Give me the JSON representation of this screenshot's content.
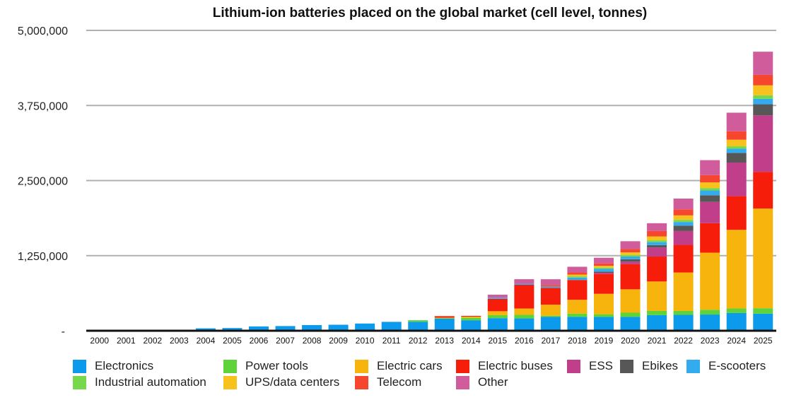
{
  "chart_data": {
    "type": "bar",
    "stacked": true,
    "title": "Lithium-ion batteries placed on the global market (cell level, tonnes)",
    "xlabel": "",
    "ylabel": "",
    "ylim": [
      0,
      5000000
    ],
    "yticks": [
      0,
      1250000,
      2500000,
      3750000,
      5000000
    ],
    "ytick_labels": [
      "-",
      "1,250,000",
      "2,500,000",
      "3,750,000",
      "5,000,000"
    ],
    "grid": true,
    "legend_position": "bottom",
    "categories": [
      "2000",
      "2001",
      "2002",
      "2003",
      "2004",
      "2005",
      "2006",
      "2007",
      "2008",
      "2009",
      "2010",
      "2011",
      "2012",
      "2013",
      "2014",
      "2015",
      "2016",
      "2017",
      "2018",
      "2019",
      "2020",
      "2021",
      "2022",
      "2023",
      "2024",
      "2025"
    ],
    "series": [
      {
        "name": "Electronics",
        "color": "#0C9BEC",
        "values": [
          10000,
          12000,
          14000,
          16000,
          40000,
          45000,
          72000,
          78000,
          95000,
          100000,
          120000,
          148000,
          150000,
          200000,
          175000,
          210000,
          205000,
          230000,
          230000,
          230000,
          230000,
          260000,
          265000,
          270000,
          295000,
          285000
        ]
      },
      {
        "name": "Power tools",
        "color": "#5ED43A",
        "values": [
          0,
          0,
          0,
          0,
          0,
          0,
          0,
          0,
          0,
          0,
          0,
          0,
          25000,
          10000,
          40000,
          50000,
          60000,
          20000,
          55000,
          45000,
          70000,
          70000,
          65000,
          80000,
          75000,
          90000
        ]
      },
      {
        "name": "Electric cars",
        "color": "#F6B40C",
        "values": [
          0,
          0,
          0,
          0,
          0,
          0,
          0,
          0,
          0,
          0,
          0,
          0,
          0,
          8000,
          20000,
          65000,
          105000,
          185000,
          230000,
          340000,
          390000,
          490000,
          640000,
          950000,
          1310000,
          1660000
        ]
      },
      {
        "name": "Electric buses",
        "color": "#F71D0B",
        "values": [
          0,
          0,
          0,
          0,
          0,
          0,
          0,
          0,
          0,
          0,
          0,
          0,
          0,
          25000,
          12000,
          205000,
          395000,
          280000,
          330000,
          330000,
          420000,
          415000,
          460000,
          490000,
          560000,
          610000
        ]
      },
      {
        "name": "ESS",
        "color": "#C13E8A",
        "values": [
          0,
          0,
          0,
          0,
          0,
          0,
          0,
          0,
          0,
          0,
          0,
          0,
          0,
          0,
          0,
          0,
          0,
          0,
          0,
          20000,
          40000,
          150000,
          230000,
          355000,
          560000,
          940000
        ]
      },
      {
        "name": "Ebikes",
        "color": "#575757",
        "values": [
          0,
          0,
          0,
          0,
          0,
          0,
          0,
          0,
          0,
          0,
          0,
          0,
          0,
          0,
          0,
          0,
          0,
          0,
          0,
          20000,
          40000,
          40000,
          90000,
          110000,
          160000,
          185000
        ]
      },
      {
        "name": "E-scooters",
        "color": "#33ACEF",
        "values": [
          0,
          0,
          0,
          0,
          0,
          0,
          0,
          0,
          0,
          0,
          0,
          0,
          0,
          0,
          0,
          20000,
          18000,
          22000,
          40000,
          45000,
          45000,
          50000,
          60000,
          80000,
          70000,
          90000
        ]
      },
      {
        "name": "Industrial automation",
        "color": "#76D94C",
        "values": [
          0,
          0,
          0,
          0,
          0,
          0,
          0,
          0,
          0,
          0,
          0,
          0,
          0,
          0,
          0,
          0,
          0,
          0,
          20000,
          20000,
          25000,
          30000,
          35000,
          40000,
          40000,
          60000
        ]
      },
      {
        "name": "UPS/data centers",
        "color": "#F8C21D",
        "values": [
          0,
          0,
          0,
          0,
          0,
          0,
          0,
          0,
          0,
          0,
          0,
          0,
          0,
          0,
          0,
          0,
          0,
          0,
          30000,
          30000,
          45000,
          65000,
          75000,
          95000,
          110000,
          165000
        ]
      },
      {
        "name": "Telecom",
        "color": "#F6462E",
        "values": [
          0,
          0,
          0,
          0,
          0,
          0,
          0,
          0,
          0,
          0,
          0,
          0,
          0,
          0,
          0,
          0,
          0,
          25000,
          35000,
          40000,
          55000,
          90000,
          100000,
          120000,
          140000,
          175000
        ]
      },
      {
        "name": "Other",
        "color": "#D05C9C",
        "values": [
          0,
          0,
          0,
          0,
          0,
          0,
          0,
          0,
          0,
          0,
          0,
          0,
          0,
          0,
          0,
          50000,
          75000,
          95000,
          95000,
          95000,
          130000,
          130000,
          180000,
          250000,
          310000,
          385000
        ]
      }
    ]
  }
}
